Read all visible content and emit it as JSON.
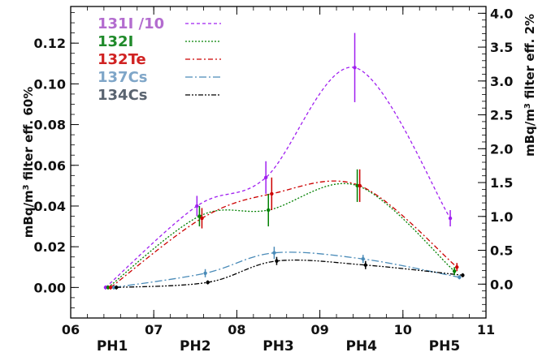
{
  "chart_data": {
    "type": "line",
    "ylabel_left": "mBq/m3 filter eff. 60%",
    "ylabel_right": "mBq/m3 filter eff. 2%",
    "xlim": [
      6,
      11
    ],
    "ylim_left": [
      -0.015,
      0.138
    ],
    "ylim_right": [
      -0.5,
      4.1
    ],
    "x_ticks": [
      "06",
      "07",
      "08",
      "09",
      "10",
      "11"
    ],
    "y_ticks_left": [
      "0.00",
      "0.02",
      "0.04",
      "0.06",
      "0.08",
      "0.10",
      "0.12"
    ],
    "y_ticks_right": [
      "0.0",
      "0.5",
      "1.0",
      "1.5",
      "2.0",
      "2.5",
      "3.0",
      "3.5",
      "4.0"
    ],
    "phases": [
      {
        "label": "PH1",
        "x": 6.5
      },
      {
        "label": "PH2",
        "x": 7.5
      },
      {
        "label": "PH3",
        "x": 8.5
      },
      {
        "label": "PH4",
        "x": 9.5
      },
      {
        "label": "PH5",
        "x": 10.5
      }
    ],
    "legend_position": "top-left",
    "series": [
      {
        "name": "131I /10",
        "color": "#a020f0",
        "label_color": "#b36ccf",
        "dash": "4,3",
        "x": [
          6.42,
          7.52,
          8.35,
          9.42,
          10.57
        ],
        "values": [
          0.0,
          0.04,
          0.054,
          0.108,
          0.034
        ],
        "errors": [
          0.001,
          0.005,
          0.008,
          0.017,
          0.004
        ]
      },
      {
        "name": "132I",
        "color": "#008000",
        "label_color": "#1f8a2a",
        "dash": "2,2",
        "x": [
          6.45,
          7.55,
          8.38,
          9.45,
          10.62
        ],
        "values": [
          0.0,
          0.035,
          0.038,
          0.05,
          0.008
        ],
        "errors": [
          0.001,
          0.005,
          0.008,
          0.008,
          0.002
        ]
      },
      {
        "name": "132Te",
        "color": "#cc0000",
        "label_color": "#d02222",
        "dash": "6,3,2,3",
        "x": [
          6.48,
          7.58,
          8.42,
          9.48,
          10.65
        ],
        "values": [
          0.0,
          0.034,
          0.046,
          0.05,
          0.01
        ],
        "errors": [
          0.001,
          0.005,
          0.008,
          0.008,
          0.002
        ]
      },
      {
        "name": "137Cs",
        "color": "#4a8bb8",
        "label_color": "#7fa6c8",
        "dash": "9,3,2,3",
        "x": [
          6.52,
          7.62,
          8.45,
          9.52,
          10.68
        ],
        "values": [
          0.0,
          0.007,
          0.017,
          0.014,
          0.005
        ],
        "errors": [
          0.001,
          0.002,
          0.003,
          0.002,
          0.001
        ]
      },
      {
        "name": "134Cs",
        "color": "#000000",
        "label_color": "#5a6470",
        "dash": "6,2,2,2,2,2",
        "x": [
          6.55,
          7.65,
          8.48,
          9.55,
          10.72
        ],
        "values": [
          0.0,
          0.0025,
          0.013,
          0.011,
          0.006
        ],
        "errors": [
          0.001,
          0.001,
          0.002,
          0.002,
          0.001
        ]
      }
    ]
  }
}
